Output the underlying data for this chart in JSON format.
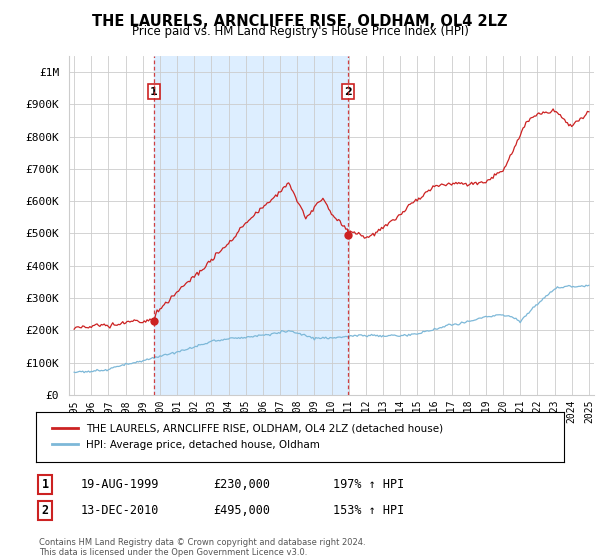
{
  "title": "THE LAURELS, ARNCLIFFE RISE, OLDHAM, OL4 2LZ",
  "subtitle": "Price paid vs. HM Land Registry's House Price Index (HPI)",
  "ylim": [
    0,
    1050000
  ],
  "yticks": [
    0,
    100000,
    200000,
    300000,
    400000,
    500000,
    600000,
    700000,
    800000,
    900000,
    1000000
  ],
  "ytick_labels": [
    "£0",
    "£100K",
    "£200K",
    "£300K",
    "£400K",
    "£500K",
    "£600K",
    "£700K",
    "£800K",
    "£900K",
    "£1M"
  ],
  "hpi_color": "#7db8d8",
  "price_color": "#cc2222",
  "vline_color": "#cc2222",
  "shade_color": "#ddeeff",
  "purchase1_date": 1999.64,
  "purchase1_price": 230000,
  "purchase1_label": "1",
  "purchase2_date": 2010.96,
  "purchase2_price": 495000,
  "purchase2_label": "2",
  "legend_entry1": "THE LAURELS, ARNCLIFFE RISE, OLDHAM, OL4 2LZ (detached house)",
  "legend_entry2": "HPI: Average price, detached house, Oldham",
  "table_row1": [
    "1",
    "19-AUG-1999",
    "£230,000",
    "197% ↑ HPI"
  ],
  "table_row2": [
    "2",
    "13-DEC-2010",
    "£495,000",
    "153% ↑ HPI"
  ],
  "footnote": "Contains HM Land Registry data © Crown copyright and database right 2024.\nThis data is licensed under the Open Government Licence v3.0.",
  "background_color": "#ffffff",
  "grid_color": "#cccccc"
}
